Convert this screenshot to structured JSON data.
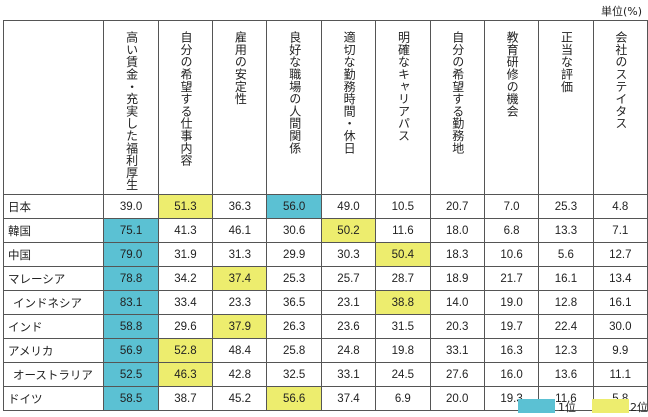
{
  "unit": "単位(%)",
  "headers": [
    "高い賃金・充実した福利厚生",
    "自分の希望する仕事内容",
    "雇用の安定性",
    "良好な職場の人間関係",
    "適切な勤務時間・休日",
    "明確なキャリアパス",
    "自分の希望する勤務地",
    "教育研修の機会",
    "正当な評価",
    "会社のステイタス"
  ],
  "rows": [
    {
      "country": "日本",
      "values": [
        "39.0",
        "51.3",
        "36.3",
        "56.0",
        "49.0",
        "10.5",
        "20.7",
        "7.0",
        "25.3",
        "4.8"
      ],
      "ranks": [
        0,
        2,
        0,
        1,
        0,
        0,
        0,
        0,
        0,
        0
      ]
    },
    {
      "country": "韓国",
      "values": [
        "75.1",
        "41.3",
        "46.1",
        "30.6",
        "50.2",
        "11.6",
        "18.0",
        "6.8",
        "13.3",
        "7.1"
      ],
      "ranks": [
        1,
        0,
        0,
        0,
        2,
        0,
        0,
        0,
        0,
        0
      ]
    },
    {
      "country": "中国",
      "values": [
        "79.0",
        "31.9",
        "31.3",
        "29.9",
        "30.3",
        "50.4",
        "18.3",
        "10.6",
        "5.6",
        "12.7"
      ],
      "ranks": [
        1,
        0,
        0,
        0,
        0,
        2,
        0,
        0,
        0,
        0
      ]
    },
    {
      "country": "マレーシア",
      "values": [
        "78.8",
        "34.2",
        "37.4",
        "25.3",
        "25.7",
        "28.7",
        "18.9",
        "21.7",
        "16.1",
        "13.4"
      ],
      "ranks": [
        1,
        0,
        2,
        0,
        0,
        0,
        0,
        0,
        0,
        0
      ]
    },
    {
      "country": "インドネシア",
      "indent": true,
      "values": [
        "83.1",
        "33.4",
        "23.3",
        "36.5",
        "23.1",
        "38.8",
        "14.0",
        "19.0",
        "12.8",
        "16.1"
      ],
      "ranks": [
        1,
        0,
        0,
        0,
        0,
        2,
        0,
        0,
        0,
        0
      ]
    },
    {
      "country": "インド",
      "values": [
        "58.8",
        "29.6",
        "37.9",
        "26.3",
        "23.6",
        "31.5",
        "20.3",
        "19.7",
        "22.4",
        "30.0"
      ],
      "ranks": [
        1,
        0,
        2,
        0,
        0,
        0,
        0,
        0,
        0,
        0
      ]
    },
    {
      "country": "アメリカ",
      "values": [
        "56.9",
        "52.8",
        "48.4",
        "25.8",
        "24.8",
        "19.8",
        "33.1",
        "16.3",
        "12.3",
        "9.9"
      ],
      "ranks": [
        1,
        2,
        0,
        0,
        0,
        0,
        0,
        0,
        0,
        0
      ]
    },
    {
      "country": "オーストラリア",
      "indent": true,
      "values": [
        "52.5",
        "46.3",
        "42.8",
        "32.5",
        "33.1",
        "24.5",
        "27.6",
        "16.0",
        "13.6",
        "11.1"
      ],
      "ranks": [
        1,
        2,
        0,
        0,
        0,
        0,
        0,
        0,
        0,
        0
      ]
    },
    {
      "country": "ドイツ",
      "values": [
        "58.5",
        "38.7",
        "45.2",
        "56.6",
        "37.4",
        "6.9",
        "20.0",
        "19.3",
        "11.6",
        "5.8"
      ],
      "ranks": [
        1,
        0,
        0,
        2,
        0,
        0,
        0,
        0,
        0,
        0
      ]
    }
  ],
  "legend": {
    "first": "1位",
    "second": "2位",
    "first_color": "#5bc1d3",
    "second_color": "#eded6e"
  }
}
